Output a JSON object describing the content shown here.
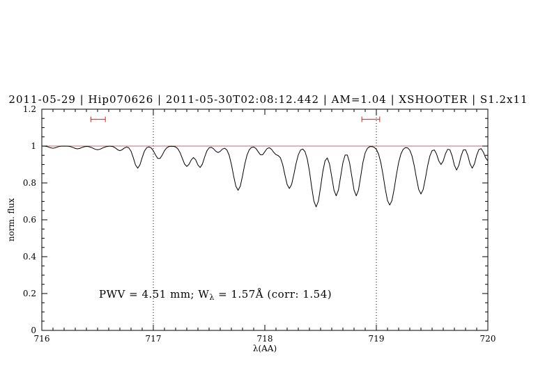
{
  "figure": {
    "background": "#ffffff"
  },
  "chart_data": {
    "type": "line",
    "title": "2011-05-29 | Hip070626 | 2011-05-30T02:08:12.442 | AM=1.04 | XSHOOTER | S1.2x11",
    "xlabel": "λ(AA)",
    "ylabel": "norm. flux",
    "xlim": [
      716,
      720
    ],
    "ylim": [
      0,
      1.2
    ],
    "grid": "dotted vertical reference lines at 717 and 719, no other grid",
    "legend_position": "none",
    "colors": {
      "accent_blue": "#0000dd",
      "marker_red": "#cc2222",
      "continuum_red": "#cc6666",
      "spectrum_black": "#000000",
      "axis_black": "#000000"
    },
    "x_ticks": {
      "values": [
        716,
        717,
        718,
        719,
        720
      ],
      "labels": [
        "716",
        "717",
        "718",
        "719",
        "720"
      ],
      "minor_step": 0.1
    },
    "y_ticks": {
      "values": [
        0,
        0.2,
        0.4,
        0.6,
        0.8,
        1.0,
        1.2
      ],
      "labels": [
        "0",
        "0.2",
        "0.4",
        "0.6",
        "0.8",
        "1",
        "1.2"
      ],
      "minor_step": 0.05
    },
    "dotted_vlines": [
      717,
      719
    ],
    "continuum_level": 1.0,
    "range_markers": [
      {
        "x1": 716.44,
        "x2": 716.57,
        "y": 1.145
      },
      {
        "x1": 718.87,
        "x2": 719.03,
        "y": 1.145
      }
    ],
    "annotation": {
      "parts": [
        "PWV = 4.51 mm; W",
        "λ",
        " = 1.57Å (corr: 1.54)"
      ],
      "pwv_mm": 4.51,
      "w_lambda_angstrom": 1.57,
      "corr": 1.54
    },
    "spectrum": {
      "description": "normalized telluric absorption spectrum; continuum minus gaussian lines [center_AA, depth, sigma_AA]",
      "x_start": 716.0,
      "x_end": 720.0,
      "x_step": 0.02,
      "continuum": 1.0,
      "absorption_lines": [
        [
          716.1,
          0.012,
          0.03
        ],
        [
          716.32,
          0.015,
          0.035
        ],
        [
          716.5,
          0.02,
          0.04
        ],
        [
          716.7,
          0.025,
          0.03
        ],
        [
          716.86,
          0.12,
          0.035
        ],
        [
          717.05,
          0.07,
          0.035
        ],
        [
          717.3,
          0.11,
          0.04
        ],
        [
          717.42,
          0.115,
          0.035
        ],
        [
          717.58,
          0.035,
          0.03
        ],
        [
          717.76,
          0.24,
          0.045
        ],
        [
          717.97,
          0.05,
          0.03
        ],
        [
          718.1,
          0.04,
          0.03
        ],
        [
          718.22,
          0.23,
          0.045
        ],
        [
          718.46,
          0.33,
          0.045
        ],
        [
          718.64,
          0.27,
          0.04
        ],
        [
          718.82,
          0.27,
          0.04
        ],
        [
          719.12,
          0.32,
          0.05
        ],
        [
          719.4,
          0.26,
          0.045
        ],
        [
          719.58,
          0.1,
          0.03
        ],
        [
          719.72,
          0.13,
          0.03
        ],
        [
          719.86,
          0.12,
          0.03
        ],
        [
          720.0,
          0.08,
          0.03
        ]
      ]
    }
  }
}
